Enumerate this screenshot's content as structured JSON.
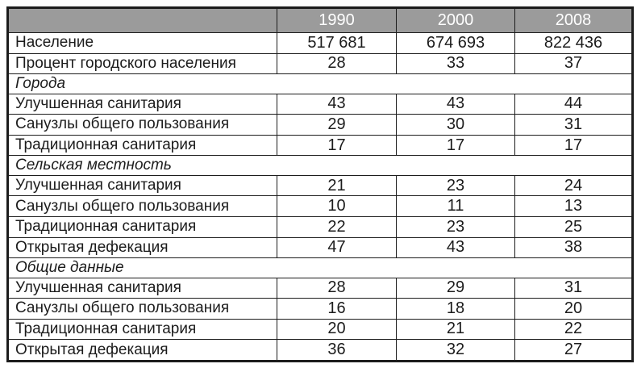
{
  "table": {
    "columns": [
      "",
      "1990",
      "2000",
      "2008"
    ],
    "rows": [
      {
        "type": "data",
        "label": "Население",
        "values": [
          "517 681",
          "674 693",
          "822 436"
        ]
      },
      {
        "type": "data",
        "label": "Процент городского населения",
        "values": [
          "28",
          "33",
          "37"
        ]
      },
      {
        "type": "section",
        "label": "Города"
      },
      {
        "type": "data",
        "label": "Улучшенная санитария",
        "values": [
          "43",
          "43",
          "44"
        ]
      },
      {
        "type": "data",
        "label": "Санузлы общего пользования",
        "values": [
          "29",
          "30",
          "31"
        ]
      },
      {
        "type": "data",
        "label": "Традиционная санитария",
        "values": [
          "17",
          "17",
          "17"
        ]
      },
      {
        "type": "section",
        "label": "Сельская местность"
      },
      {
        "type": "data",
        "label": "Улучшенная санитария",
        "values": [
          "21",
          "23",
          "24"
        ]
      },
      {
        "type": "data",
        "label": "Санузлы общего пользования",
        "values": [
          "10",
          "11",
          "13"
        ]
      },
      {
        "type": "data",
        "label": "Традиционная санитария",
        "values": [
          "22",
          "23",
          "25"
        ]
      },
      {
        "type": "data",
        "label": "Открытая дефекация",
        "values": [
          "47",
          "43",
          "38"
        ]
      },
      {
        "type": "section",
        "label": "Общие данные"
      },
      {
        "type": "data",
        "label": "Улучшенная санитария",
        "values": [
          "28",
          "29",
          "31"
        ]
      },
      {
        "type": "data",
        "label": "Санузлы общего пользования",
        "values": [
          "16",
          "18",
          "20"
        ]
      },
      {
        "type": "data",
        "label": "Традиционная санитария",
        "values": [
          "20",
          "21",
          "22"
        ]
      },
      {
        "type": "data",
        "label": "Открытая дефекация",
        "values": [
          "36",
          "32",
          "27"
        ]
      }
    ],
    "colors": {
      "header_bg": "#9b9b9b",
      "header_text": "#ffffff",
      "border": "#1c1c1c",
      "text": "#1c1c1c"
    }
  },
  "chart_data": {
    "type": "table",
    "title": "",
    "columns": [
      "",
      "1990",
      "2000",
      "2008"
    ],
    "rows": [
      [
        "Население",
        "517 681",
        "674 693",
        "822 436"
      ],
      [
        "Процент городского населения",
        28,
        33,
        37
      ],
      [
        "Города",
        null,
        null,
        null
      ],
      [
        "Улучшенная санитария",
        43,
        43,
        44
      ],
      [
        "Санузлы общего пользования",
        29,
        30,
        31
      ],
      [
        "Традиционная санитария",
        17,
        17,
        17
      ],
      [
        "Сельская местность",
        null,
        null,
        null
      ],
      [
        "Улучшенная санитария",
        21,
        23,
        24
      ],
      [
        "Санузлы общего пользования",
        10,
        11,
        13
      ],
      [
        "Традиционная санитария",
        22,
        23,
        25
      ],
      [
        "Открытая дефекация",
        47,
        43,
        38
      ],
      [
        "Общие данные",
        null,
        null,
        null
      ],
      [
        "Улучшенная санитария",
        28,
        29,
        31
      ],
      [
        "Санузлы общего пользования",
        16,
        18,
        20
      ],
      [
        "Традиционная санитария",
        20,
        21,
        22
      ],
      [
        "Открытая дефекация",
        36,
        32,
        27
      ]
    ]
  }
}
